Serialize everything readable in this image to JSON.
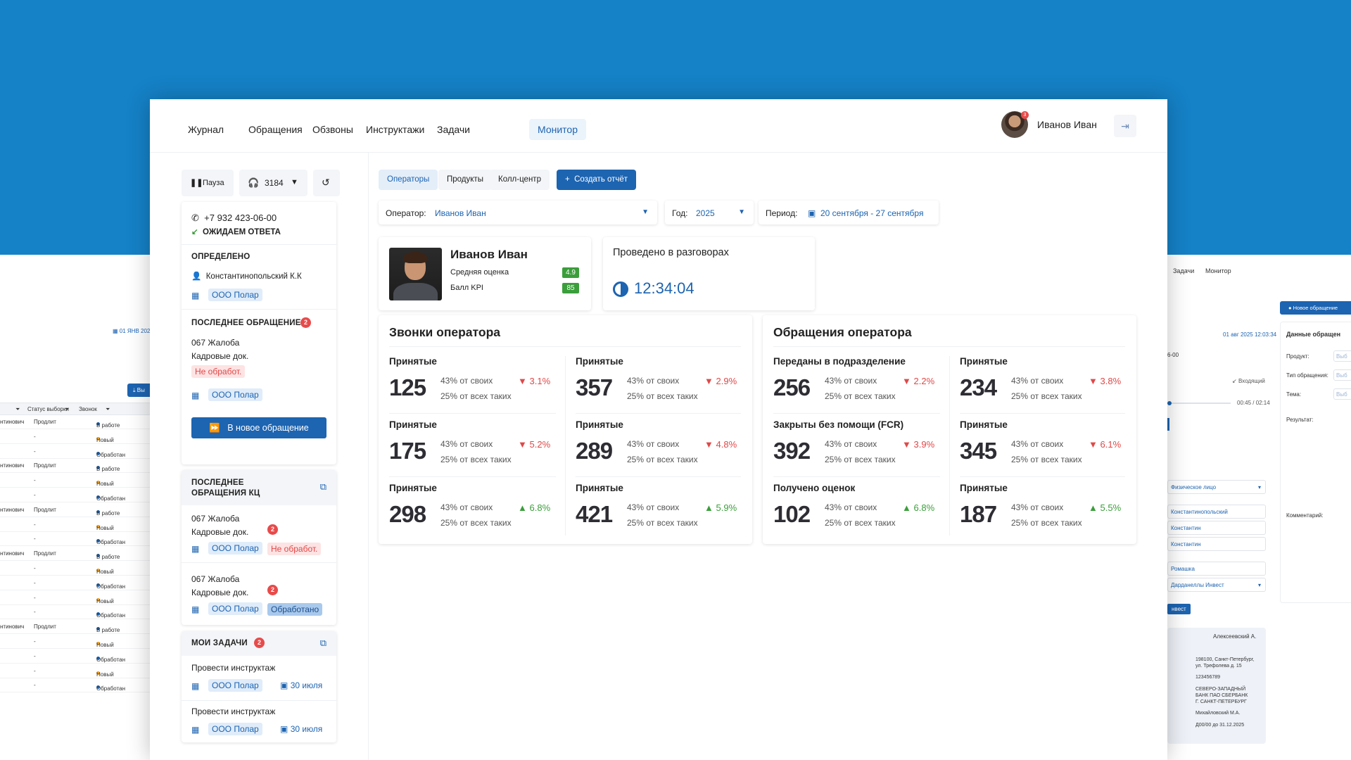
{
  "nav": {
    "items": [
      "Журнал",
      "Обращения",
      "Обзвоны",
      "Инструктажи",
      "Задачи",
      "Монитор"
    ],
    "active": "Монитор",
    "user_name": "Иванов Иван",
    "avatar_badge": "3"
  },
  "sidebar": {
    "pause_label": "Пауза",
    "line_number": "3184",
    "phone": "+7 932 423-06-00",
    "call_status": "ОЖИДАЕМ ОТВЕТА",
    "identified": {
      "title": "ОПРЕДЕЛЕНО",
      "person": "Константинопольский К.К",
      "company": "ООО Полар"
    },
    "last_request": {
      "title": "ПОСЛЕДНЕЕ ОБРАЩЕНИЕ",
      "count": "2",
      "line1": "067 Жалоба",
      "line2": "Кадровые док.",
      "status": "Не обработ.",
      "company": "ООО Полар",
      "button": "В новое обращение"
    },
    "last_kc": {
      "title_line1": "ПОСЛЕДНЕЕ",
      "title_line2": "ОБРАЩЕНИЯ КЦ",
      "items": [
        {
          "line1": "067 Жалоба",
          "line2": "Кадровые док.",
          "badge": "2",
          "company": "ООО Полар",
          "status": "Не обработ."
        },
        {
          "line1": "067 Жалоба",
          "line2": "Кадровые док.",
          "badge": "2",
          "company": "ООО Полар",
          "status": "Обработано"
        }
      ]
    },
    "tasks": {
      "title": "МОИ ЗАДАЧИ",
      "count": "2",
      "items": [
        {
          "title": "Провести инструктаж",
          "company": "ООО Полар",
          "date": "30 июля"
        },
        {
          "title": "Провести инструктаж",
          "company": "ООО Полар",
          "date": "30 июля"
        }
      ]
    }
  },
  "tabs": {
    "operators": "Операторы",
    "products": "Продукты",
    "callcenter": "Колл-центр",
    "create_report": "Создать отчёт"
  },
  "filters": {
    "operator_label": "Оператор:",
    "operator_value": "Иванов Иван",
    "year_label": "Год:",
    "year_value": "2025",
    "period_label": "Период:",
    "period_value": "20 сентября - 27 сентября"
  },
  "profile": {
    "name": "Иванов Иван",
    "avg_label": "Средняя оценка",
    "avg_value": "4.9",
    "kpi_label": "Балл KPI",
    "kpi_value": "85"
  },
  "talk_time": {
    "title": "Проведено в разговорах",
    "value": "12:34:04"
  },
  "calls": {
    "title": "Звонки оператора",
    "stats": [
      {
        "label": "Принятые",
        "value": "125",
        "share1": "43% от своих",
        "share2": "25% от всех таких",
        "change": "3.1%",
        "dir": "down"
      },
      {
        "label": "Принятые",
        "value": "357",
        "share1": "43% от своих",
        "share2": "25% от всех таких",
        "change": "2.9%",
        "dir": "down"
      },
      {
        "label": "Принятые",
        "value": "175",
        "share1": "43% от своих",
        "share2": "25% от всех таких",
        "change": "5.2%",
        "dir": "down"
      },
      {
        "label": "Принятые",
        "value": "289",
        "share1": "43% от своих",
        "share2": "25% от всех таких",
        "change": "4.8%",
        "dir": "down"
      },
      {
        "label": "Принятые",
        "value": "298",
        "share1": "43% от своих",
        "share2": "25% от всех таких",
        "change": "6.8%",
        "dir": "up"
      },
      {
        "label": "Принятые",
        "value": "421",
        "share1": "43% от своих",
        "share2": "25% от всех таких",
        "change": "5.9%",
        "dir": "up"
      }
    ]
  },
  "requests": {
    "title": "Обращения оператора",
    "stats": [
      {
        "label": "Переданы в подразделение",
        "value": "256",
        "share1": "43% от своих",
        "share2": "25% от всех таких",
        "change": "2.2%",
        "dir": "down"
      },
      {
        "label": "Принятые",
        "value": "234",
        "share1": "43% от своих",
        "share2": "25% от всех таких",
        "change": "3.8%",
        "dir": "down"
      },
      {
        "label": "Закрыты без помощи (FCR)",
        "value": "392",
        "share1": "43% от своих",
        "share2": "25% от всех таких",
        "change": "3.9%",
        "dir": "down"
      },
      {
        "label": "Принятые",
        "value": "345",
        "share1": "43% от своих",
        "share2": "25% от всех таких",
        "change": "6.1%",
        "dir": "down"
      },
      {
        "label": "Получено оценок",
        "value": "102",
        "share1": "43% от своих",
        "share2": "25% от всех таких",
        "change": "6.8%",
        "dir": "up"
      },
      {
        "label": "Принятые",
        "value": "187",
        "share1": "43% от своих",
        "share2": "25% от всех таких",
        "change": "5.5%",
        "dir": "up"
      }
    ]
  },
  "bg_left": {
    "date": "01 ЯНВ 202",
    "btn": "Вы",
    "headers": [
      "Статус выборки",
      "Звонок"
    ],
    "rows": [
      {
        "a": "нтинович",
        "b": "Продлит",
        "s": "В работе",
        "c": "#1d64b1"
      },
      {
        "a": "",
        "b": "-",
        "s": "Новый",
        "c": "#f0a020"
      },
      {
        "a": "",
        "b": "-",
        "s": "Обработан",
        "c": "#1d64b1"
      },
      {
        "a": "нтинович",
        "b": "Продлит",
        "s": "В работе",
        "c": "#1d64b1"
      },
      {
        "a": "",
        "b": "-",
        "s": "Новый",
        "c": "#f0a020"
      },
      {
        "a": "",
        "b": "-",
        "s": "Обработан",
        "c": "#1d64b1"
      },
      {
        "a": "нтинович",
        "b": "Продлит",
        "s": "В работе",
        "c": "#1d64b1"
      },
      {
        "a": "",
        "b": "-",
        "s": "Новый",
        "c": "#f0a020"
      },
      {
        "a": "",
        "b": "-",
        "s": "Обработан",
        "c": "#1d64b1"
      },
      {
        "a": "нтинович",
        "b": "Продлит",
        "s": "В работе",
        "c": "#1d64b1"
      },
      {
        "a": "",
        "b": "-",
        "s": "Новый",
        "c": "#f0a020"
      },
      {
        "a": "",
        "b": "-",
        "s": "Обработан",
        "c": "#1d64b1"
      },
      {
        "a": "",
        "b": "-",
        "s": "Новый",
        "c": "#f0a020"
      },
      {
        "a": "",
        "b": "-",
        "s": "Обработан",
        "c": "#1d64b1"
      },
      {
        "a": "нтинович",
        "b": "Продлит",
        "s": "В работе",
        "c": "#1d64b1"
      },
      {
        "a": "",
        "b": "-",
        "s": "Новый",
        "c": "#f0a020"
      },
      {
        "a": "",
        "b": "-",
        "s": "Обработан",
        "c": "#1d64b1"
      },
      {
        "a": "",
        "b": "-",
        "s": "Новый",
        "c": "#f0a020"
      },
      {
        "a": "",
        "b": "-",
        "s": "Обработан",
        "c": "#1d64b1"
      }
    ]
  },
  "bg_right": {
    "nav1": "Задачи",
    "nav2": "Монитор",
    "btn": "Новое обращение",
    "datetime": "01 авг 2025  12:03:34",
    "panel_title": "Данные обращен",
    "phone_frag": "6-00",
    "incoming": "Входящий",
    "time": "00:45 / 02:14",
    "product": "Продукт:",
    "type": "Тип обращения:",
    "topic": "Тема:",
    "result": "Результат:",
    "comment": "Комментарий:",
    "select1": "Физическое лицо",
    "in1": "Константинопольский",
    "in2": "Константин",
    "in3": "Константин",
    "in4": "Ромашка",
    "select2": "Дарданеллы Инвест",
    "tag": "нвест",
    "card_name": "Алексеевский А.",
    "card_l1": "198100, Санкт-Петербург,",
    "card_l2": "ул. Трефолева д. 15",
    "card_l3": "123456789",
    "card_l4": "СЕВЕРО-ЗАПАДНЫЙ",
    "card_l5": "БАНК ПАО СБЕРБАНК",
    "card_l6": "Г. САНКТ-ПЕТЕРБУРГ",
    "card_l7": "Михайловский М.А.",
    "card_l8": "Д00/00 до 31.12.2025",
    "placeholder_frag": "Выб"
  },
  "colors": {
    "accent": "#1d64b1",
    "header_bg": "#1581c6",
    "down": "#e04848",
    "up": "#3b9e3b"
  }
}
